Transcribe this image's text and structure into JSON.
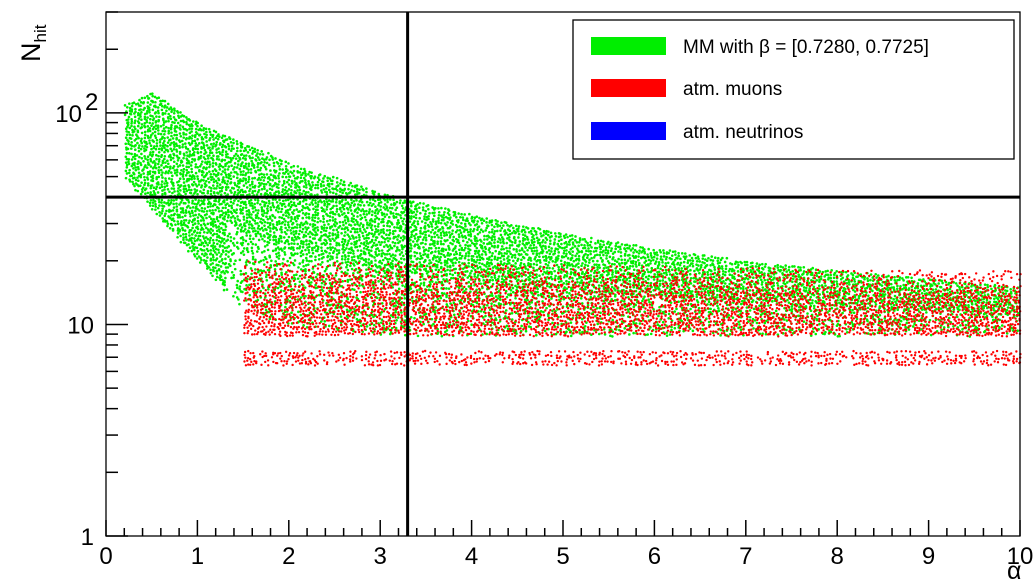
{
  "chart_data": {
    "type": "scatter",
    "title": "",
    "xlabel": "α",
    "ylabel_main": "N",
    "ylabel_sub": "hit",
    "xlim": [
      0,
      10
    ],
    "ylim": [
      1,
      300
    ],
    "y_scale": "log",
    "x_ticks": [
      {
        "value": 0,
        "label": "0"
      },
      {
        "value": 1,
        "label": "1"
      },
      {
        "value": 2,
        "label": "2"
      },
      {
        "value": 3,
        "label": "3"
      },
      {
        "value": 4,
        "label": "4"
      },
      {
        "value": 5,
        "label": "5"
      },
      {
        "value": 6,
        "label": "6"
      },
      {
        "value": 7,
        "label": "7"
      },
      {
        "value": 8,
        "label": "8"
      },
      {
        "value": 9,
        "label": "9"
      },
      {
        "value": 10,
        "label": "10"
      }
    ],
    "y_ticks": [
      {
        "value": 1,
        "label": "1"
      },
      {
        "value": 10,
        "label": "10"
      },
      {
        "value": 100,
        "label": "10",
        "exponent": "2"
      }
    ],
    "cut_lines": {
      "alpha": 3.3,
      "nhit": 40
    },
    "legend": {
      "position": "top-right",
      "entries": [
        {
          "label": "MM with β = [0.7280, 0.7725]",
          "color": "#00ee00"
        },
        {
          "label": "atm. muons",
          "color": "#ff0000"
        },
        {
          "label": "atm. neutrinos",
          "color": "#0000ff"
        }
      ]
    },
    "series": [
      {
        "name": "MM with β = [0.7280, 0.7725]",
        "color": "#00ee00",
        "alpha_range": [
          0.2,
          10
        ],
        "peak_alpha": 0.5,
        "upper_edge": [
          [
            0.2,
            110
          ],
          [
            0.5,
            125
          ],
          [
            1,
            90
          ],
          [
            2,
            58
          ],
          [
            3,
            42
          ],
          [
            4,
            33
          ],
          [
            5,
            27
          ],
          [
            6,
            23
          ],
          [
            7,
            20
          ],
          [
            8,
            18
          ],
          [
            9,
            16.5
          ],
          [
            10,
            15
          ]
        ],
        "lower_edge": [
          [
            0.2,
            50
          ],
          [
            0.5,
            35
          ],
          [
            1,
            20
          ],
          [
            1.5,
            12
          ],
          [
            2,
            10
          ],
          [
            3,
            9
          ],
          [
            4,
            9
          ],
          [
            10,
            9
          ]
        ]
      },
      {
        "name": "atm. muons",
        "color": "#ff0000",
        "alpha_range": [
          1.5,
          10
        ],
        "main_band": [
          9,
          20
        ],
        "secondary_band": [
          6.5,
          7.5
        ]
      },
      {
        "name": "atm. neutrinos",
        "color": "#0000ff",
        "points": []
      }
    ]
  }
}
